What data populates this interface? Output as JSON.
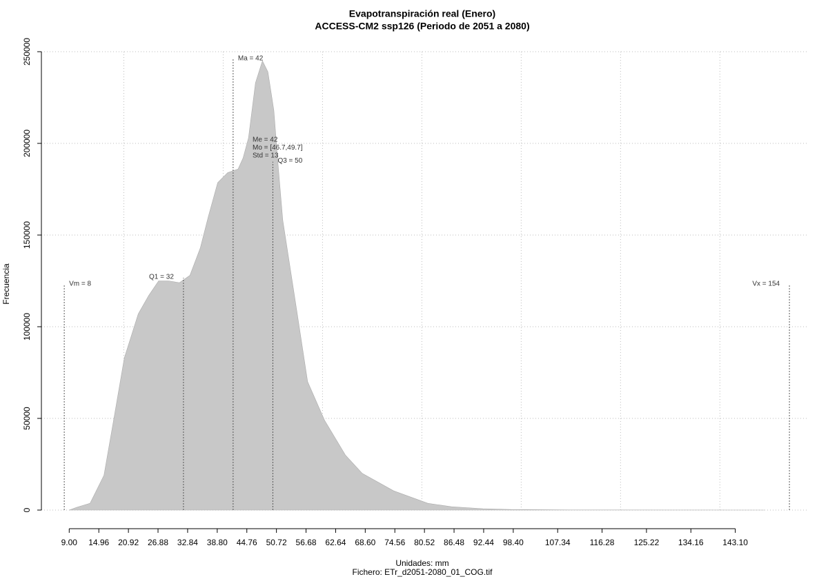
{
  "chart_data": {
    "type": "area",
    "title": "Evapotranspiración real (Enero)",
    "subtitle": "ACCESS-CM2 ssp126 (Periodo de 2051 a 2080)",
    "x_label": "Unidades: mm",
    "y_label": "Frecuencia",
    "footnote": "Fichero: ETr_d2051-2080_01_COG.tif",
    "color": "#c8c8c8",
    "x": [
      9,
      10.5,
      13.2,
      16,
      18,
      20.1,
      22.9,
      25,
      27,
      29,
      31.2,
      33.3,
      35.4,
      37,
      38.9,
      40.9,
      43,
      44,
      45.1,
      46.5,
      47.9,
      49,
      50.2,
      51,
      52,
      54.8,
      57,
      60.4,
      64.6,
      68,
      74.3,
      81.2,
      86,
      92.3,
      98,
      110,
      130,
      149
    ],
    "values": [
      0,
      1500,
      3700,
      19000,
      50000,
      83000,
      107000,
      117000,
      125000,
      125000,
      124000,
      128000,
      143000,
      160000,
      178600,
      184000,
      186000,
      192000,
      203000,
      233000,
      245000,
      239000,
      218000,
      190000,
      158000,
      109000,
      70000,
      49000,
      30000,
      20000,
      10500,
      3700,
      1800,
      750,
      300,
      80,
      20,
      0
    ],
    "xlim": [
      3.4,
      157.6
    ],
    "ylim": [
      0,
      250000
    ],
    "xticks": [
      {
        "value": 9,
        "label": "9.00"
      },
      14.96,
      20.92,
      26.88,
      32.84,
      {
        "value": 38.8,
        "label": "38.80"
      },
      44.76,
      50.72,
      56.68,
      62.64,
      {
        "value": 68.6,
        "label": "68.60"
      },
      74.56,
      80.52,
      86.48,
      92.44,
      {
        "value": 98.4,
        "label": "98.40"
      },
      107.34,
      116.28,
      125.22,
      134.16,
      {
        "value": 143.1,
        "label": "143.10"
      }
    ],
    "yticks": [
      0,
      50000,
      100000,
      150000,
      200000,
      250000
    ],
    "xgrid": [
      20,
      40,
      60,
      80,
      100,
      120,
      140
    ],
    "grid": true,
    "stat_lines": [
      {
        "label": "Vm = 8",
        "x": 8,
        "y": 123000,
        "side": "right"
      },
      {
        "label": "Q1 = 32",
        "x": 32,
        "y": 126700,
        "side": "left"
      },
      {
        "label": "Ma = 42",
        "x": 42,
        "y": 246000,
        "side": "right"
      },
      {
        "label": "Q3 = 50",
        "x": 50,
        "y": 190000,
        "side": "right"
      },
      {
        "label": "Vx = 154",
        "x": 154,
        "y": 123000,
        "side": "left"
      }
    ],
    "stats_text": [
      "Me = 42",
      "Mo = [46.7,49.7]",
      "Std = 13"
    ]
  }
}
